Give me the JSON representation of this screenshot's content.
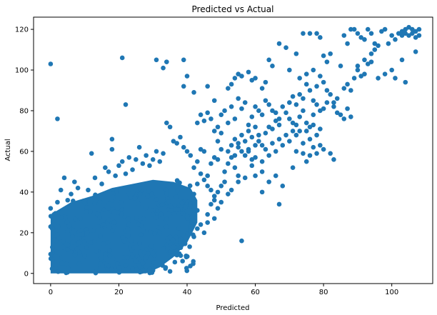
{
  "chart_data": {
    "type": "scatter",
    "title": "Predicted vs Actual",
    "xlabel": "Predicted",
    "ylabel": "Actual",
    "xlim": [
      -5,
      112
    ],
    "ylim": [
      -5,
      126
    ],
    "xticks": [
      0,
      20,
      40,
      60,
      80,
      100
    ],
    "yticks": [
      0,
      20,
      40,
      60,
      80,
      100,
      120
    ],
    "grid": false,
    "legend": "none",
    "color": "#1f77b4",
    "dense_region": {
      "x_range": [
        0,
        40
      ],
      "y_range": [
        0,
        45
      ]
    },
    "points": [
      [
        0,
        103
      ],
      [
        2,
        76
      ],
      [
        21,
        106
      ],
      [
        22,
        83
      ],
      [
        31,
        105
      ],
      [
        33,
        101
      ],
      [
        34,
        104
      ],
      [
        39,
        105
      ],
      [
        40,
        97
      ],
      [
        39,
        92
      ],
      [
        0,
        32
      ],
      [
        0,
        23
      ],
      [
        1,
        29
      ],
      [
        2,
        35
      ],
      [
        3,
        41
      ],
      [
        4,
        47
      ],
      [
        5,
        36
      ],
      [
        6,
        39
      ],
      [
        7,
        45
      ],
      [
        8,
        42
      ],
      [
        11,
        41
      ],
      [
        12,
        59
      ],
      [
        13,
        47
      ],
      [
        15,
        44
      ],
      [
        16,
        52
      ],
      [
        17,
        50
      ],
      [
        18,
        61
      ],
      [
        18,
        66
      ],
      [
        19,
        48
      ],
      [
        20,
        53
      ],
      [
        21,
        55
      ],
      [
        22,
        49
      ],
      [
        23,
        57
      ],
      [
        24,
        51
      ],
      [
        25,
        56
      ],
      [
        26,
        62
      ],
      [
        27,
        54
      ],
      [
        28,
        58
      ],
      [
        29,
        53
      ],
      [
        30,
        56
      ],
      [
        31,
        60
      ],
      [
        32,
        55
      ],
      [
        33,
        59
      ],
      [
        34,
        74
      ],
      [
        35,
        72
      ],
      [
        36,
        65
      ],
      [
        37,
        64
      ],
      [
        38,
        67
      ],
      [
        39,
        62
      ],
      [
        40,
        60
      ],
      [
        41,
        58
      ],
      [
        42,
        52
      ],
      [
        43,
        55
      ],
      [
        44,
        61
      ],
      [
        45,
        60
      ],
      [
        46,
        48
      ],
      [
        47,
        54
      ],
      [
        48,
        57
      ],
      [
        49,
        56
      ],
      [
        50,
        61
      ],
      [
        42,
        39
      ],
      [
        43,
        44
      ],
      [
        44,
        49
      ],
      [
        45,
        46
      ],
      [
        46,
        43
      ],
      [
        47,
        41
      ],
      [
        48,
        38
      ],
      [
        49,
        40
      ],
      [
        50,
        43
      ],
      [
        51,
        45
      ],
      [
        40,
        28
      ],
      [
        41,
        23
      ],
      [
        42,
        26
      ],
      [
        43,
        22
      ],
      [
        44,
        24
      ],
      [
        45,
        20
      ],
      [
        46,
        25
      ],
      [
        47,
        34
      ],
      [
        48,
        36
      ],
      [
        49,
        32
      ],
      [
        41,
        33
      ],
      [
        42,
        29
      ],
      [
        43,
        31
      ],
      [
        46,
        29
      ],
      [
        48,
        27
      ],
      [
        50,
        35
      ],
      [
        52,
        39
      ],
      [
        53,
        41
      ],
      [
        55,
        48
      ],
      [
        54,
        52
      ],
      [
        42,
        18
      ],
      [
        39,
        15
      ],
      [
        38,
        16
      ],
      [
        32,
        20
      ],
      [
        33,
        12
      ],
      [
        34,
        14
      ],
      [
        35,
        18
      ],
      [
        28,
        8
      ],
      [
        27,
        5
      ],
      [
        26,
        4
      ],
      [
        22,
        4
      ],
      [
        20,
        3
      ],
      [
        18,
        2
      ],
      [
        25,
        6
      ],
      [
        30,
        10
      ],
      [
        36,
        13
      ],
      [
        37,
        9
      ],
      [
        41,
        21
      ],
      [
        24,
        2
      ],
      [
        35,
        1
      ],
      [
        52,
        60
      ],
      [
        53,
        63
      ],
      [
        54,
        66
      ],
      [
        55,
        64
      ],
      [
        56,
        68
      ],
      [
        57,
        65
      ],
      [
        58,
        70
      ],
      [
        59,
        67
      ],
      [
        60,
        72
      ],
      [
        61,
        68
      ],
      [
        51,
        50
      ],
      [
        52,
        54
      ],
      [
        53,
        57
      ],
      [
        54,
        58
      ],
      [
        55,
        62
      ],
      [
        56,
        60
      ],
      [
        57,
        58
      ],
      [
        58,
        61
      ],
      [
        59,
        56
      ],
      [
        60,
        63
      ],
      [
        48,
        85
      ],
      [
        49,
        72
      ],
      [
        50,
        78
      ],
      [
        51,
        80
      ],
      [
        52,
        74
      ],
      [
        53,
        82
      ],
      [
        54,
        76
      ],
      [
        55,
        86
      ],
      [
        56,
        81
      ],
      [
        57,
        84
      ],
      [
        45,
        75
      ],
      [
        46,
        79
      ],
      [
        47,
        76
      ],
      [
        44,
        78
      ],
      [
        43,
        74
      ],
      [
        42,
        89
      ],
      [
        46,
        92
      ],
      [
        48,
        70
      ],
      [
        49,
        65
      ],
      [
        50,
        69
      ],
      [
        52,
        91
      ],
      [
        53,
        93
      ],
      [
        54,
        96
      ],
      [
        55,
        98
      ],
      [
        56,
        97
      ],
      [
        58,
        99
      ],
      [
        59,
        95
      ],
      [
        60,
        96
      ],
      [
        62,
        91
      ],
      [
        63,
        94
      ],
      [
        58,
        73
      ],
      [
        59,
        77
      ],
      [
        60,
        82
      ],
      [
        61,
        80
      ],
      [
        62,
        78
      ],
      [
        63,
        85
      ],
      [
        64,
        83
      ],
      [
        65,
        80
      ],
      [
        66,
        79
      ],
      [
        67,
        76
      ],
      [
        58,
        60
      ],
      [
        59,
        53
      ],
      [
        60,
        57
      ],
      [
        61,
        65
      ],
      [
        62,
        63
      ],
      [
        63,
        69
      ],
      [
        64,
        72
      ],
      [
        65,
        71
      ],
      [
        66,
        75
      ],
      [
        67,
        73
      ],
      [
        62,
        55
      ],
      [
        63,
        61
      ],
      [
        64,
        58
      ],
      [
        65,
        64
      ],
      [
        66,
        60
      ],
      [
        67,
        66
      ],
      [
        68,
        63
      ],
      [
        69,
        68
      ],
      [
        70,
        65
      ],
      [
        71,
        70
      ],
      [
        55,
        45
      ],
      [
        57,
        47
      ],
      [
        60,
        48
      ],
      [
        62,
        50
      ],
      [
        64,
        45
      ],
      [
        66,
        48
      ],
      [
        62,
        40
      ],
      [
        68,
        43
      ],
      [
        71,
        52
      ],
      [
        67,
        34
      ],
      [
        56,
        16
      ],
      [
        64,
        105
      ],
      [
        65,
        102
      ],
      [
        67,
        113
      ],
      [
        69,
        111
      ],
      [
        70,
        100
      ],
      [
        72,
        108
      ],
      [
        74,
        118
      ],
      [
        76,
        118
      ],
      [
        78,
        118
      ],
      [
        79,
        116
      ],
      [
        80,
        107
      ],
      [
        81,
        104
      ],
      [
        82,
        108
      ],
      [
        83,
        82
      ],
      [
        84,
        79
      ],
      [
        85,
        78
      ],
      [
        86,
        76
      ],
      [
        87,
        81
      ],
      [
        88,
        77
      ],
      [
        68,
        82
      ],
      [
        69,
        79
      ],
      [
        70,
        84
      ],
      [
        71,
        87
      ],
      [
        72,
        83
      ],
      [
        73,
        88
      ],
      [
        74,
        86
      ],
      [
        75,
        93
      ],
      [
        76,
        90
      ],
      [
        77,
        85
      ],
      [
        72,
        73
      ],
      [
        73,
        77
      ],
      [
        74,
        80
      ],
      [
        75,
        74
      ],
      [
        76,
        72
      ],
      [
        77,
        78
      ],
      [
        78,
        83
      ],
      [
        79,
        80
      ],
      [
        80,
        81
      ],
      [
        81,
        84
      ],
      [
        70,
        76
      ],
      [
        71,
        74
      ],
      [
        72,
        68
      ],
      [
        73,
        70
      ],
      [
        74,
        64
      ],
      [
        75,
        70
      ],
      [
        76,
        66
      ],
      [
        77,
        73
      ],
      [
        78,
        68
      ],
      [
        79,
        71
      ],
      [
        73,
        96
      ],
      [
        75,
        98
      ],
      [
        77,
        100
      ],
      [
        78,
        92
      ],
      [
        79,
        97
      ],
      [
        80,
        94
      ],
      [
        81,
        90
      ],
      [
        82,
        88
      ],
      [
        83,
        84
      ],
      [
        84,
        86
      ],
      [
        76,
        58
      ],
      [
        77,
        62
      ],
      [
        78,
        59
      ],
      [
        79,
        63
      ],
      [
        80,
        61
      ],
      [
        75,
        55
      ],
      [
        74,
        59
      ],
      [
        72,
        60
      ],
      [
        82,
        59
      ],
      [
        83,
        56
      ],
      [
        86,
        91
      ],
      [
        87,
        93
      ],
      [
        88,
        90
      ],
      [
        89,
        96
      ],
      [
        90,
        100
      ],
      [
        91,
        97
      ],
      [
        92,
        105
      ],
      [
        93,
        103
      ],
      [
        94,
        108
      ],
      [
        95,
        110
      ],
      [
        85,
        102
      ],
      [
        86,
        117
      ],
      [
        87,
        113
      ],
      [
        88,
        120
      ],
      [
        89,
        120
      ],
      [
        90,
        118
      ],
      [
        91,
        116
      ],
      [
        92,
        115
      ],
      [
        93,
        120
      ],
      [
        94,
        118
      ],
      [
        95,
        113
      ],
      [
        96,
        112
      ],
      [
        97,
        119
      ],
      [
        98,
        120
      ],
      [
        99,
        113
      ],
      [
        100,
        117
      ],
      [
        101,
        115
      ],
      [
        102,
        118
      ],
      [
        103,
        119
      ],
      [
        104,
        120
      ],
      [
        105,
        121
      ],
      [
        106,
        120
      ],
      [
        107,
        119
      ],
      [
        108,
        120
      ],
      [
        105,
        117
      ],
      [
        106,
        118
      ],
      [
        107,
        116
      ],
      [
        108,
        117
      ],
      [
        104,
        118
      ],
      [
        103,
        117
      ],
      [
        104,
        94
      ],
      [
        107,
        109
      ],
      [
        103,
        105
      ],
      [
        96,
        96
      ],
      [
        98,
        98
      ],
      [
        100,
        100
      ],
      [
        101,
        96
      ],
      [
        94,
        104
      ],
      [
        92,
        98
      ],
      [
        90,
        102
      ]
    ]
  }
}
